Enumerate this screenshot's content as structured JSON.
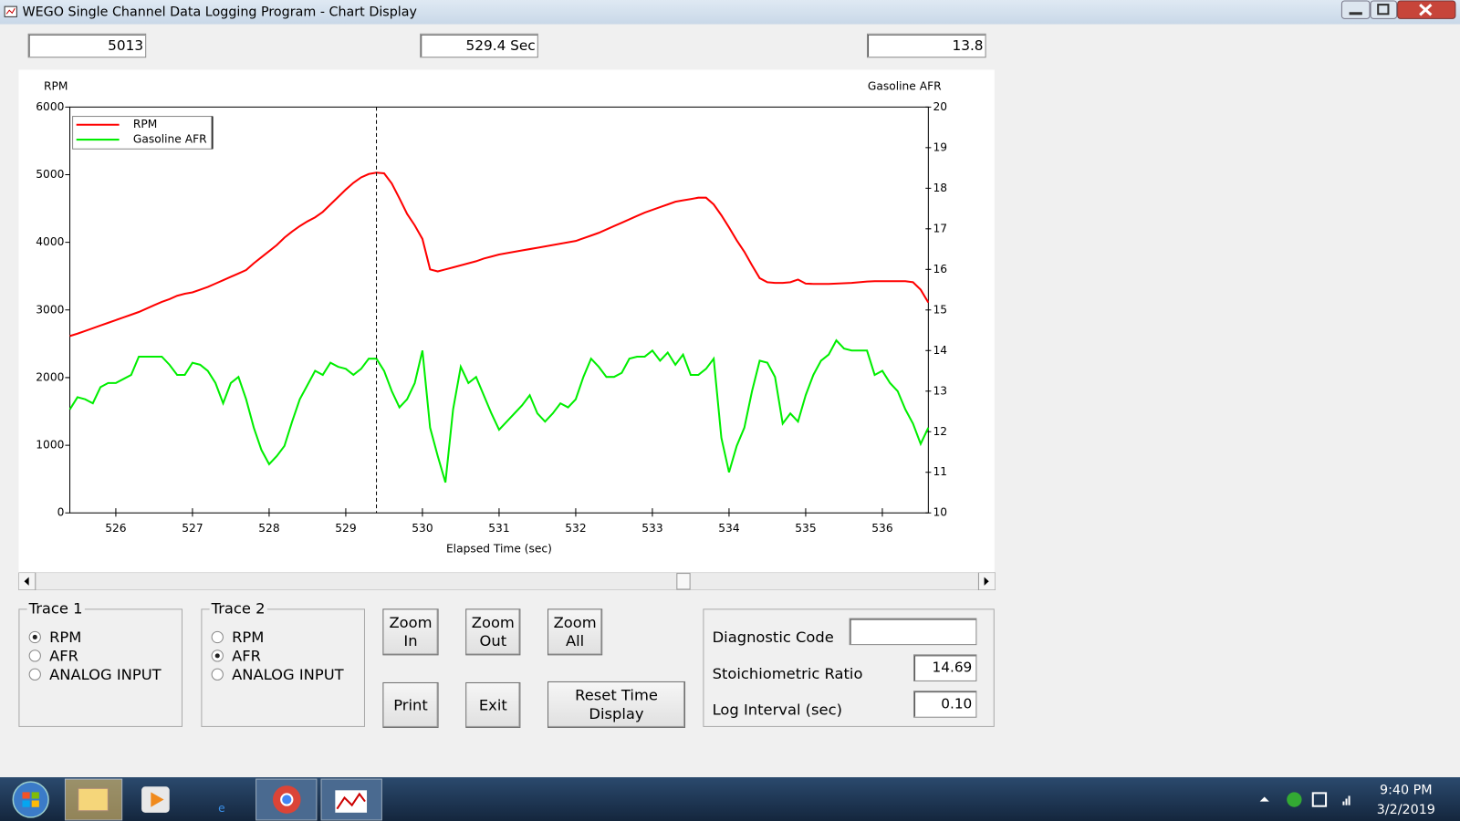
{
  "window": {
    "title": "WEGO Single Channel Data Logging Program - Chart Display"
  },
  "readouts": [
    "5013",
    "529.4 Sec",
    "13.8"
  ],
  "chart_data": {
    "type": "line",
    "y_label": "RPM",
    "y2_label": "Gasoline AFR",
    "x_label": "Elapsed Time (sec)",
    "legend": "upper left",
    "cursor": 529.4,
    "xlim": [
      525.4,
      536.6
    ],
    "xticks": [
      526,
      527,
      528,
      529,
      530,
      531,
      532,
      533,
      534,
      535,
      536
    ],
    "ylim": [
      0,
      6000
    ],
    "yticks": [
      0,
      1000,
      2000,
      3000,
      4000,
      5000,
      6000
    ],
    "y2lim": [
      10,
      20
    ],
    "y2ticks": [
      10,
      11,
      12,
      13,
      14,
      15,
      16,
      17,
      18,
      19,
      20
    ],
    "x": [
      525.4,
      525.5,
      525.6,
      525.7,
      525.8,
      525.9,
      526.0,
      526.1,
      526.2,
      526.3,
      526.4,
      526.5,
      526.6,
      526.7,
      526.8,
      526.9,
      527.0,
      527.1,
      527.2,
      527.3,
      527.4,
      527.5,
      527.6,
      527.7,
      527.8,
      527.9,
      528.0,
      528.1,
      528.2,
      528.3,
      528.4,
      528.5,
      528.6,
      528.7,
      528.8,
      528.9,
      529.0,
      529.1,
      529.2,
      529.3,
      529.4,
      529.5,
      529.6,
      529.7,
      529.8,
      529.9,
      530.0,
      530.1,
      530.2,
      530.3,
      530.4,
      530.5,
      530.6,
      530.7,
      530.8,
      530.9,
      531.0,
      531.1,
      531.2,
      531.3,
      531.4,
      531.5,
      531.6,
      531.7,
      531.8,
      531.9,
      532.0,
      532.1,
      532.2,
      532.3,
      532.4,
      532.5,
      532.6,
      532.7,
      532.8,
      532.9,
      533.0,
      533.1,
      533.2,
      533.3,
      533.4,
      533.5,
      533.6,
      533.7,
      533.8,
      533.9,
      534.0,
      534.1,
      534.2,
      534.3,
      534.4,
      534.5,
      534.6,
      534.7,
      534.8,
      534.9,
      535.0,
      535.1,
      535.2,
      535.3,
      535.4,
      535.5,
      535.6,
      535.7,
      535.8,
      535.9,
      536.0,
      536.1,
      536.2,
      536.3,
      536.4,
      536.5,
      536.6
    ],
    "series": [
      {
        "name": "RPM",
        "color": "#ff0000",
        "values": [
          2615,
          2650,
          2690,
          2730,
          2770,
          2810,
          2850,
          2890,
          2930,
          2970,
          3020,
          3070,
          3120,
          3160,
          3210,
          3240,
          3260,
          3300,
          3340,
          3390,
          3440,
          3490,
          3540,
          3590,
          3690,
          3780,
          3870,
          3960,
          4070,
          4160,
          4240,
          4310,
          4370,
          4450,
          4560,
          4670,
          4780,
          4880,
          4960,
          5010,
          5030,
          5020,
          4870,
          4650,
          4420,
          4250,
          4050,
          3600,
          3570,
          3600,
          3630,
          3660,
          3690,
          3720,
          3760,
          3790,
          3820,
          3840,
          3860,
          3880,
          3900,
          3920,
          3940,
          3960,
          3980,
          4000,
          4020,
          4060,
          4100,
          4140,
          4190,
          4240,
          4290,
          4340,
          4390,
          4440,
          4480,
          4520,
          4560,
          4600,
          4620,
          4640,
          4660,
          4660,
          4560,
          4400,
          4220,
          4030,
          3860,
          3660,
          3470,
          3410,
          3400,
          3400,
          3410,
          3450,
          3390,
          3385,
          3385,
          3385,
          3390,
          3395,
          3400,
          3410,
          3420,
          3425,
          3425,
          3425,
          3425,
          3425,
          3410,
          3300,
          3110
        ]
      },
      {
        "name": "Gasoline AFR",
        "color": "#00ee00",
        "axis": "y2",
        "values": [
          12.55,
          12.85,
          12.8,
          12.7,
          13.1,
          13.2,
          13.2,
          13.3,
          13.4,
          13.85,
          13.85,
          13.85,
          13.85,
          13.65,
          13.4,
          13.4,
          13.7,
          13.65,
          13.5,
          13.2,
          12.7,
          13.2,
          13.35,
          12.8,
          12.1,
          11.55,
          11.2,
          11.4,
          11.65,
          12.25,
          12.8,
          13.15,
          13.5,
          13.4,
          13.7,
          13.6,
          13.55,
          13.4,
          13.55,
          13.8,
          13.8,
          13.5,
          13.0,
          12.6,
          12.8,
          13.2,
          14.0,
          12.1,
          11.4,
          10.75,
          12.55,
          13.6,
          13.2,
          13.35,
          12.9,
          12.45,
          12.05,
          12.25,
          12.45,
          12.65,
          12.9,
          12.45,
          12.25,
          12.45,
          12.7,
          12.6,
          12.8,
          13.35,
          13.8,
          13.6,
          13.35,
          13.35,
          13.45,
          13.8,
          13.85,
          13.85,
          14.0,
          13.75,
          13.95,
          13.65,
          13.9,
          13.4,
          13.4,
          13.55,
          13.8,
          11.85,
          11.0,
          11.65,
          12.1,
          13.0,
          13.75,
          13.7,
          13.35,
          12.2,
          12.45,
          12.25,
          12.9,
          13.4,
          13.75,
          13.9,
          14.25,
          14.05,
          14.0,
          14.0,
          14.0,
          13.4,
          13.5,
          13.2,
          13.0,
          12.55,
          12.2,
          11.7,
          12.1
        ]
      }
    ]
  },
  "trace1": {
    "title": "Trace 1",
    "options": [
      {
        "label": "RPM",
        "checked": true
      },
      {
        "label": "AFR",
        "checked": false
      },
      {
        "label": "ANALOG INPUT",
        "checked": false
      }
    ]
  },
  "trace2": {
    "title": "Trace 2",
    "options": [
      {
        "label": "RPM",
        "checked": false
      },
      {
        "label": "AFR",
        "checked": true
      },
      {
        "label": "ANALOG INPUT",
        "checked": false
      }
    ]
  },
  "buttons": [
    "Zoom In",
    "Zoom Out",
    "Zoom All",
    "Print",
    "Exit",
    "Reset Time Display"
  ],
  "diagnostics": {
    "diagnostic_code": "Diagnostic Code",
    "stoich_label": "Stoichiometric Ratio",
    "stoich_value": "14.69",
    "interval_label": "Log Interval (sec)",
    "interval_value": "0.10"
  },
  "taskbar": {
    "time": "9:40 PM",
    "date": "3/2/2019"
  }
}
